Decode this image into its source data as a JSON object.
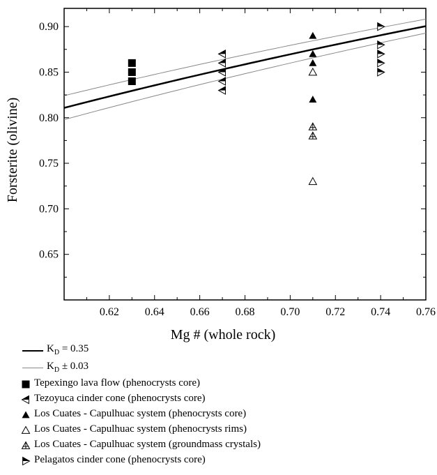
{
  "chart_data": {
    "type": "scatter",
    "title": "",
    "xlabel": "Mg # (whole rock)",
    "ylabel": "Forsterite (olivine)",
    "xlim": [
      0.6,
      0.76
    ],
    "ylim": [
      0.6,
      0.92
    ],
    "xticks": [
      "0.62",
      "0.64",
      "0.66",
      "0.68",
      "0.70",
      "0.72",
      "0.74",
      "0.76"
    ],
    "yticks": [
      "0.65",
      "0.70",
      "0.75",
      "0.80",
      "0.85",
      "0.90"
    ],
    "grid": false,
    "legend_position": "bottom",
    "lines": [
      {
        "name_main": "K",
        "name_sub": "D",
        "name_rest": " = 0.35",
        "kd": 0.35,
        "style": "thick",
        "color": "#000000"
      },
      {
        "name_main": "K",
        "name_sub": "D",
        "name_rest": " ± 0.03",
        "kd_values": [
          0.32,
          0.38
        ],
        "style": "thin",
        "color": "#888888"
      }
    ],
    "series": [
      {
        "name": "Tepexingo lava flow (phenocrysts core)",
        "marker": "square-filled",
        "points": [
          [
            0.63,
            0.86
          ],
          [
            0.63,
            0.85
          ],
          [
            0.63,
            0.84
          ]
        ]
      },
      {
        "name": "Tezoyuca cinder cone (phenocrysts core)",
        "marker": "triangle-left-half",
        "points": [
          [
            0.67,
            0.87
          ],
          [
            0.67,
            0.86
          ],
          [
            0.67,
            0.85
          ],
          [
            0.67,
            0.84
          ],
          [
            0.67,
            0.83
          ]
        ]
      },
      {
        "name": "Los Cuates - Capulhuac system (phenocrysts core)",
        "marker": "triangle-up-filled",
        "points": [
          [
            0.71,
            0.89
          ],
          [
            0.71,
            0.87
          ],
          [
            0.71,
            0.86
          ],
          [
            0.71,
            0.82
          ]
        ]
      },
      {
        "name": "Los Cuates - Capulhuac system (phenocrysts rims)",
        "marker": "triangle-up-open",
        "points": [
          [
            0.71,
            0.85
          ],
          [
            0.71,
            0.73
          ]
        ]
      },
      {
        "name": "Los Cuates - Capulhuac system (groundmass crystals)",
        "marker": "triangle-up-cross",
        "points": [
          [
            0.71,
            0.79
          ],
          [
            0.71,
            0.78
          ]
        ]
      },
      {
        "name": "Pelagatos cinder cone (phenocrysts core)",
        "marker": "triangle-right-half",
        "points": [
          [
            0.74,
            0.9
          ],
          [
            0.74,
            0.88
          ],
          [
            0.74,
            0.87
          ],
          [
            0.74,
            0.86
          ],
          [
            0.74,
            0.85
          ]
        ]
      }
    ]
  }
}
